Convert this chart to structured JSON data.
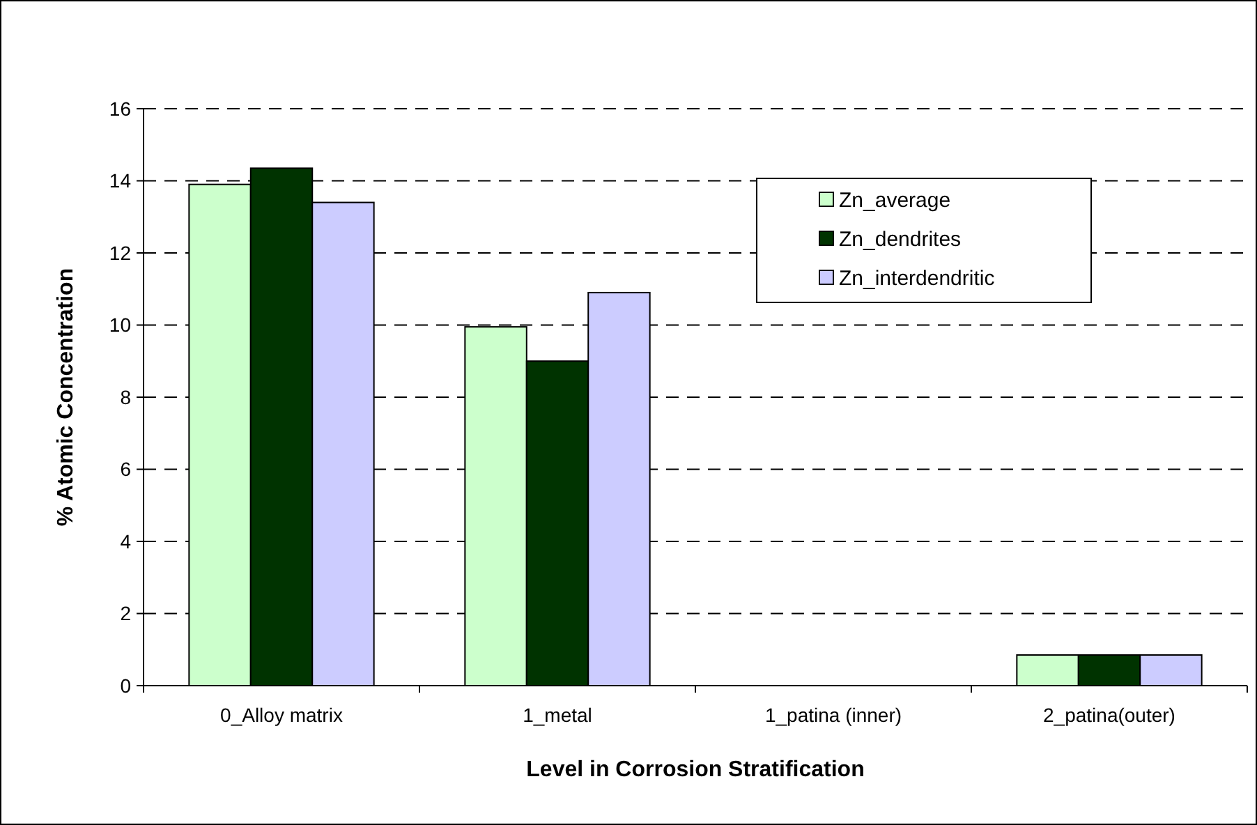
{
  "chart_data": {
    "type": "bar",
    "xlabel": "Level in Corrosion Stratification",
    "ylabel": "% Atomic Concentration",
    "categories": [
      "0_Alloy matrix",
      "1_metal",
      "1_patina (inner)",
      "2_patina(outer)"
    ],
    "series": [
      {
        "name": "Zn_average",
        "color": "#ccffcc",
        "values": [
          13.9,
          9.95,
          0,
          0.85
        ]
      },
      {
        "name": "Zn_dendrites",
        "color": "#003300",
        "values": [
          14.35,
          9.0,
          0,
          0.85
        ]
      },
      {
        "name": "Zn_interdendritic",
        "color": "#ccccff",
        "values": [
          13.4,
          10.9,
          0,
          0.85
        ]
      }
    ],
    "ylim": [
      0,
      16
    ],
    "yticks": [
      0,
      2,
      4,
      6,
      8,
      10,
      12,
      14,
      16
    ],
    "grid": "y",
    "legend": "top right"
  }
}
